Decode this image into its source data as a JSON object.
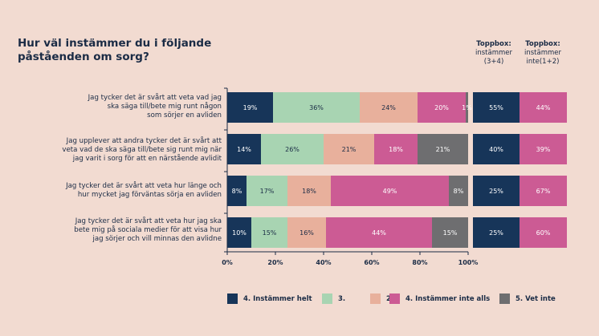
{
  "title": "Hur väl instämmer du i följande påståenden om sorg?",
  "topbox_headers": [
    {
      "bold": "Toppbox:",
      "line1": "instämmer",
      "line2": "(3+4)"
    },
    {
      "bold": "Toppbox:",
      "line1": "instämmer",
      "line2": "inte(1+2)"
    }
  ],
  "colors": {
    "helt": "#173559",
    "three": "#a8d4b2",
    "two": "#e8b09c",
    "inte_alls": "#cc5b94",
    "vet_inte": "#6e6e70",
    "axis": "#1a2b45"
  },
  "chart_data": {
    "type": "bar",
    "orientation": "horizontal",
    "stacked": true,
    "title": "Hur väl instämmer du i följande påståenden om sorg?",
    "categories": [
      [
        "Jag tycker det är svårt att veta vad jag",
        "ska  säga till/bete mig runt någon",
        "som sörjer en avliden"
      ],
      [
        "Jag upplever att andra tycker det är svårt att",
        "veta vad de ska säga till/bete sig runt mig när",
        "jag varit i sorg för att en närstående avlidit"
      ],
      [
        "Jag tycker det är svårt att veta hur länge och",
        "hur mycket jag förväntas sörja en avliden"
      ],
      [
        "Jag tycker det är svårt att veta hur jag ska",
        "bete mig på sociala medier för att visa hur",
        "jag sörjer och vill minnas den avlidne"
      ]
    ],
    "series": [
      {
        "name": "4. Instämmer helt",
        "color_key": "helt",
        "values": [
          19,
          14,
          8,
          10
        ]
      },
      {
        "name": "3.",
        "color_key": "three",
        "values": [
          36,
          26,
          17,
          15
        ]
      },
      {
        "name": "2.",
        "color_key": "two",
        "values": [
          24,
          21,
          18,
          16
        ]
      },
      {
        "name": "4. Instämmer inte alls",
        "color_key": "inte_alls",
        "values": [
          20,
          18,
          49,
          44
        ]
      },
      {
        "name": "5. Vet inte",
        "color_key": "vet_inte",
        "values": [
          1,
          21,
          8,
          15
        ]
      }
    ],
    "bar_labels": [
      [
        "19%",
        "36%",
        "24%",
        "20%",
        "1%"
      ],
      [
        "14%",
        "26%",
        "21%",
        "18%",
        "21%"
      ],
      [
        "8%",
        "17%",
        "18%",
        "49%",
        "8%"
      ],
      [
        "10%",
        "15%",
        "16%",
        "44%",
        "15%"
      ]
    ],
    "xlim": [
      0,
      100
    ],
    "xticks": [
      "0%",
      "20%",
      "40%",
      "60%",
      "80%",
      "100%"
    ],
    "topbox": {
      "instammer": [
        55,
        40,
        25,
        25
      ],
      "instammer_inte": [
        44,
        39,
        67,
        60
      ],
      "instammer_labels": [
        "55%",
        "40%",
        "25%",
        "25%"
      ],
      "instammer_inte_labels": [
        "44%",
        "39%",
        "67%",
        "60%"
      ]
    },
    "legend_position": "bottom"
  }
}
